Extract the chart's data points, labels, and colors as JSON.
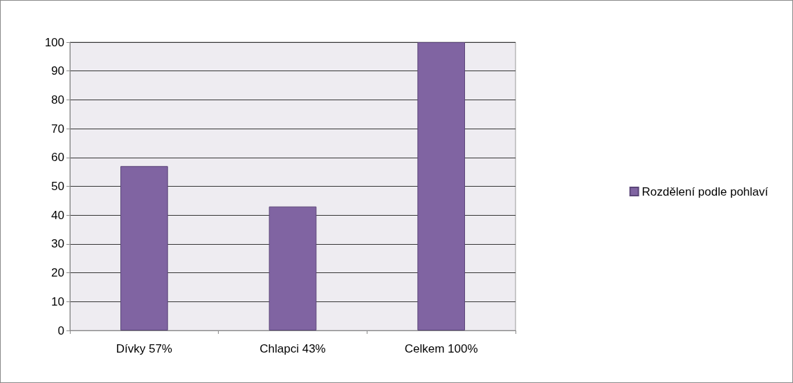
{
  "chart_data": {
    "type": "bar",
    "categories": [
      "Dívky 57%",
      "Chlapci 43%",
      "Celkem 100%"
    ],
    "series": [
      {
        "name": "Rozdělení podle pohlaví",
        "color": "#8064a2",
        "values": [
          57,
          43,
          100
        ]
      }
    ],
    "ylim": [
      0,
      100
    ],
    "yticks": [
      0,
      10,
      20,
      30,
      40,
      50,
      60,
      70,
      80,
      90,
      100
    ],
    "grid": "y",
    "legend": "right"
  }
}
